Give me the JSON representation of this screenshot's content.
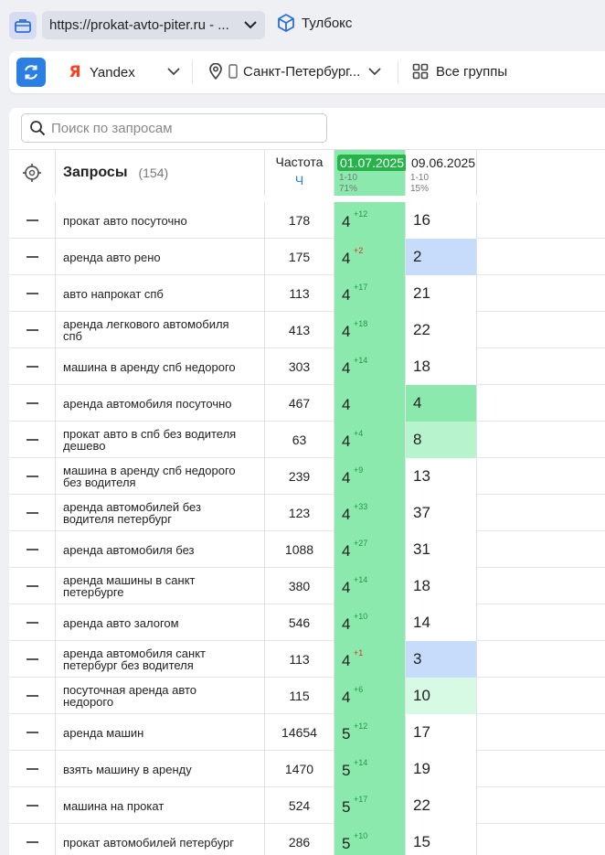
{
  "topbar": {
    "url": "https://prokat-avto-piter.ru - ...",
    "toolbox_label": "Тулбокс"
  },
  "filters": {
    "engine": "Yandex",
    "engine_logo": "Я",
    "region": "Санкт-Петербург...",
    "groups": "Все группы"
  },
  "search": {
    "placeholder": "Поиск по запросам"
  },
  "table": {
    "queries_title": "Запросы",
    "queries_count": "(154)",
    "freq_title": "Частота",
    "freq_unit": "Ч",
    "dates": [
      {
        "date": "01.07.2025",
        "range": "1-10",
        "percent": "71%"
      },
      {
        "date": "09.06.2025",
        "range": "1-10",
        "percent": "15%"
      }
    ],
    "rows": [
      {
        "query": "прокат авто посуточно",
        "freq": "178",
        "pos": "4",
        "delta": "+12",
        "dir": "up",
        "prev": "16",
        "prev_bg": "white"
      },
      {
        "query": "аренда авто рено",
        "freq": "175",
        "pos": "4",
        "delta": "+2",
        "dir": "down",
        "prev": "2",
        "prev_bg": "blue"
      },
      {
        "query": "авто напрокат спб",
        "freq": "113",
        "pos": "4",
        "delta": "+17",
        "dir": "up",
        "prev": "21",
        "prev_bg": "white"
      },
      {
        "query": "аренда легкового автомобиля спб",
        "freq": "413",
        "pos": "4",
        "delta": "+18",
        "dir": "up",
        "prev": "22",
        "prev_bg": "white"
      },
      {
        "query": "машина в аренду спб недорого",
        "freq": "303",
        "pos": "4",
        "delta": "+14",
        "dir": "up",
        "prev": "18",
        "prev_bg": "white"
      },
      {
        "query": "аренда автомобиля посуточно",
        "freq": "467",
        "pos": "4",
        "delta": "",
        "dir": "up",
        "prev": "4",
        "prev_bg": "green"
      },
      {
        "query": "прокат авто в спб без водителя дешево",
        "freq": "63",
        "pos": "4",
        "delta": "+4",
        "dir": "up",
        "prev": "8",
        "prev_bg": "mint"
      },
      {
        "query": "машина в аренду спб недорого без водителя",
        "freq": "239",
        "pos": "4",
        "delta": "+9",
        "dir": "up",
        "prev": "13",
        "prev_bg": "white"
      },
      {
        "query": "аренда автомобилей без водителя петербург",
        "freq": "123",
        "pos": "4",
        "delta": "+33",
        "dir": "up",
        "prev": "37",
        "prev_bg": "white"
      },
      {
        "query": "аренда автомобиля без",
        "freq": "1088",
        "pos": "4",
        "delta": "+27",
        "dir": "up",
        "prev": "31",
        "prev_bg": "white"
      },
      {
        "query": "аренда машины в санкт петербурге",
        "freq": "380",
        "pos": "4",
        "delta": "+14",
        "dir": "up",
        "prev": "18",
        "prev_bg": "white"
      },
      {
        "query": "аренда авто залогом",
        "freq": "546",
        "pos": "4",
        "delta": "+10",
        "dir": "up",
        "prev": "14",
        "prev_bg": "white"
      },
      {
        "query": "аренда автомобиля санкт петербург без водителя",
        "freq": "113",
        "pos": "4",
        "delta": "+1",
        "dir": "down",
        "prev": "3",
        "prev_bg": "blue"
      },
      {
        "query": "посуточная аренда авто недорого",
        "freq": "115",
        "pos": "4",
        "delta": "+6",
        "dir": "up",
        "prev": "10",
        "prev_bg": "pale"
      },
      {
        "query": "аренда машин",
        "freq": "14654",
        "pos": "5",
        "delta": "+12",
        "dir": "up",
        "prev": "17",
        "prev_bg": "white"
      },
      {
        "query": "взять машину в аренду",
        "freq": "1470",
        "pos": "5",
        "delta": "+14",
        "dir": "up",
        "prev": "19",
        "prev_bg": "white"
      },
      {
        "query": "машина на прокат",
        "freq": "524",
        "pos": "5",
        "delta": "+17",
        "dir": "up",
        "prev": "22",
        "prev_bg": "white"
      },
      {
        "query": "прокат автомобилей петербург",
        "freq": "286",
        "pos": "5",
        "delta": "+10",
        "dir": "up",
        "prev": "15",
        "prev_bg": "white"
      }
    ]
  }
}
